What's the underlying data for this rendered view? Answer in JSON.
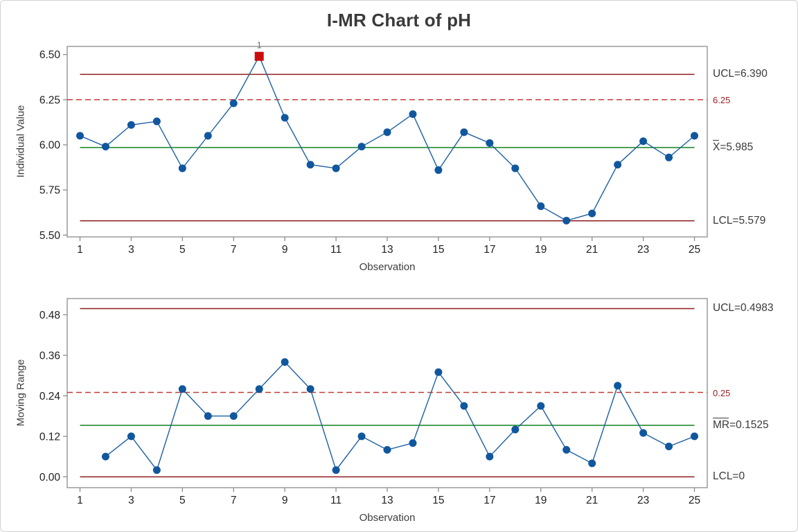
{
  "title": "I-MR Chart of pH",
  "chart_data": [
    {
      "type": "line",
      "name": "individuals",
      "title": "",
      "ylabel": "Individual Value",
      "xlabel": "Observation",
      "x": [
        1,
        2,
        3,
        4,
        5,
        6,
        7,
        8,
        9,
        10,
        11,
        12,
        13,
        14,
        15,
        16,
        17,
        18,
        19,
        20,
        21,
        22,
        23,
        24,
        25
      ],
      "values": [
        6.05,
        5.99,
        6.11,
        6.13,
        5.87,
        6.05,
        6.23,
        6.49,
        6.15,
        5.89,
        5.87,
        5.99,
        6.07,
        6.17,
        5.86,
        6.07,
        6.01,
        5.87,
        5.66,
        5.58,
        5.62,
        5.89,
        6.02,
        5.93,
        6.05
      ],
      "ylim": [
        5.49,
        6.545
      ],
      "xlim": [
        0,
        25
      ],
      "grid": false,
      "y_ticks": [
        "5.50",
        "5.75",
        "6.00",
        "6.25",
        "6.50"
      ],
      "x_ticks": [
        1,
        3,
        5,
        7,
        9,
        11,
        13,
        15,
        17,
        19,
        21,
        23,
        25
      ],
      "series_color": "#1b5fa5",
      "marker_color": "#11579e",
      "lines": [
        {
          "name": "ucl",
          "value": 6.39,
          "style": "solid",
          "span": "data",
          "color": "#8e1b1b",
          "label": "UCL=6.390",
          "label_color": "#3a3a3a",
          "small": false
        },
        {
          "name": "reference",
          "value": 6.25,
          "style": "dashed",
          "span": "frame",
          "color": "#c23b33",
          "label": "6.25",
          "label_color": "#9c2121",
          "small": true
        },
        {
          "name": "center",
          "value": 5.985,
          "style": "solid",
          "span": "data",
          "color": "#128021",
          "label": "=5.985",
          "label_overline": "X",
          "label_color": "#3a3a3a",
          "small": false
        },
        {
          "name": "lcl",
          "value": 5.579,
          "style": "solid",
          "span": "data",
          "color": "#8e1b1b",
          "label": "LCL=5.579",
          "label_color": "#3a3a3a",
          "small": false
        }
      ],
      "out_of_control": [
        {
          "index": 8,
          "value": 6.49,
          "label": "1",
          "color": "#cc0c0c",
          "label_color": "#6e6e6e"
        }
      ]
    },
    {
      "type": "line",
      "name": "moving-range",
      "title": "",
      "ylabel": "Moving Range",
      "xlabel": "Observation",
      "x": [
        1,
        2,
        3,
        4,
        5,
        6,
        7,
        8,
        9,
        10,
        11,
        12,
        13,
        14,
        15,
        16,
        17,
        18,
        19,
        20,
        21,
        22,
        23,
        24,
        25
      ],
      "values": [
        null,
        0.06,
        0.12,
        0.02,
        0.26,
        0.18,
        0.18,
        0.26,
        0.34,
        0.26,
        0.02,
        0.12,
        0.08,
        0.1,
        0.31,
        0.21,
        0.06,
        0.14,
        0.21,
        0.08,
        0.04,
        0.27,
        0.13,
        0.09,
        0.12
      ],
      "ylim": [
        -0.032,
        0.528
      ],
      "xlim": [
        0,
        25
      ],
      "grid": false,
      "y_ticks": [
        "0.00",
        "0.12",
        "0.24",
        "0.36",
        "0.48"
      ],
      "x_ticks": [
        1,
        3,
        5,
        7,
        9,
        11,
        13,
        15,
        17,
        19,
        21,
        23,
        25
      ],
      "series_color": "#1b5fa5",
      "marker_color": "#11579e",
      "lines": [
        {
          "name": "ucl",
          "value": 0.4983,
          "style": "solid",
          "span": "data",
          "color": "#8e1b1b",
          "label": "UCL=0.4983",
          "label_color": "#3a3a3a",
          "small": false
        },
        {
          "name": "reference",
          "value": 0.25,
          "style": "dashed",
          "span": "frame",
          "color": "#c23b33",
          "label": "0.25",
          "label_color": "#9c2121",
          "small": true
        },
        {
          "name": "center",
          "value": 0.1525,
          "style": "solid",
          "span": "data",
          "color": "#128021",
          "label": "=0.1525",
          "label_overline": "MR",
          "label_color": "#3a3a3a",
          "small": false
        },
        {
          "name": "lcl",
          "value": 0,
          "style": "solid",
          "span": "data",
          "color": "#8e1b1b",
          "label": "LCL=0",
          "label_color": "#3a3a3a",
          "small": false
        }
      ],
      "out_of_control": []
    }
  ]
}
